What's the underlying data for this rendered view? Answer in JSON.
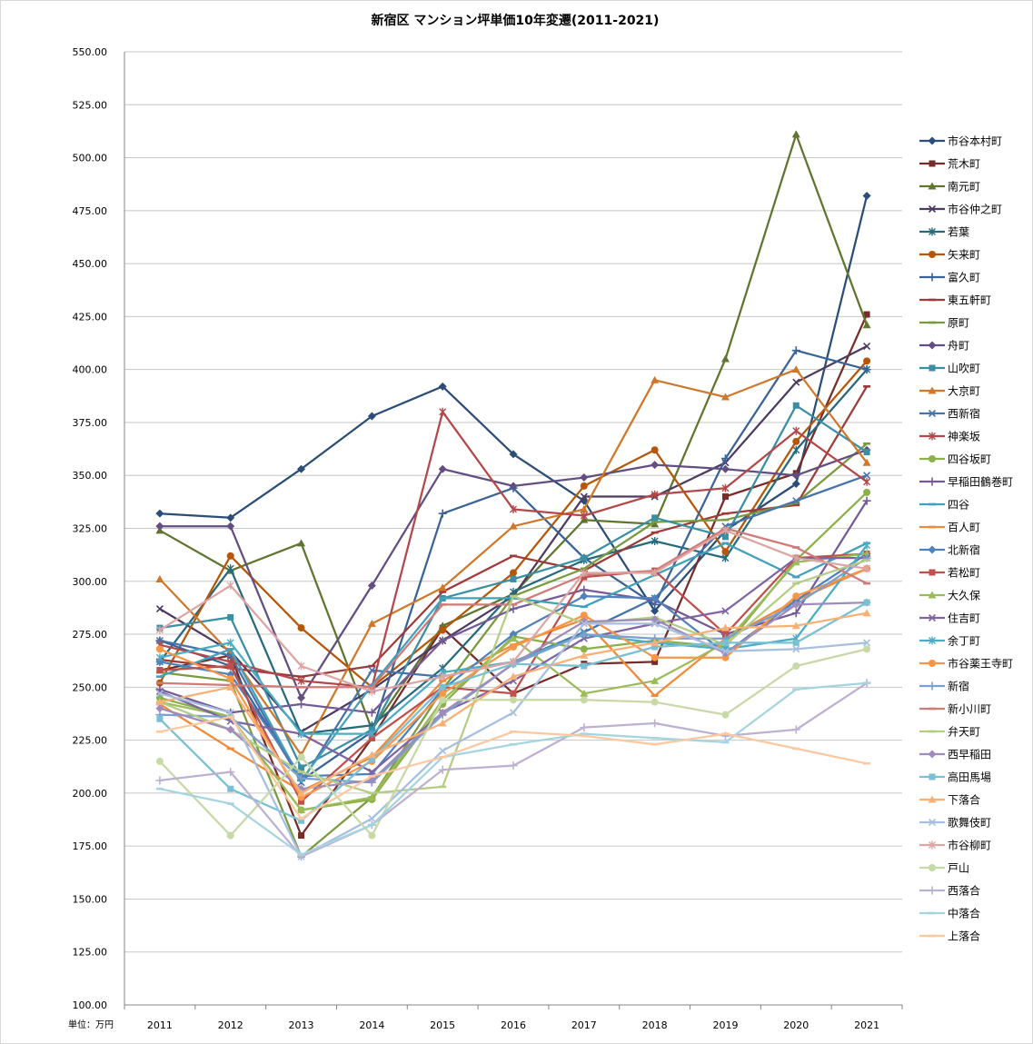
{
  "chart_data": {
    "type": "line",
    "title": "新宿区 マンション坪単価10年変遷(2011-2021)",
    "unit_label": "単位：万円",
    "xlabel": "",
    "ylabel": "",
    "ylim": [
      100,
      550
    ],
    "grid": true,
    "legend_position": "right",
    "y_ticks": [
      "100.00",
      "125.00",
      "150.00",
      "175.00",
      "200.00",
      "225.00",
      "250.00",
      "275.00",
      "300.00",
      "325.00",
      "350.00",
      "375.00",
      "400.00",
      "425.00",
      "450.00",
      "475.00",
      "500.00",
      "525.00",
      "550.00"
    ],
    "categories": [
      "2011",
      "2012",
      "2013",
      "2014",
      "2015",
      "2016",
      "2017",
      "2018",
      "2019",
      "2020",
      "2021"
    ],
    "series": [
      {
        "name": "市谷本村町",
        "color": "#2C4D75",
        "marker": "diamond",
        "values": [
          332,
          330,
          353,
          378,
          392,
          360,
          338,
          286,
          324,
          346,
          482
        ]
      },
      {
        "name": "荒木町",
        "color": "#772C2A",
        "marker": "square",
        "values": [
          258,
          265,
          180,
          226,
          278,
          247,
          261,
          262,
          340,
          351,
          426
        ]
      },
      {
        "name": "南元町",
        "color": "#5F7530",
        "marker": "triangle",
        "values": [
          324,
          305,
          318,
          230,
          279,
          294,
          329,
          327,
          405,
          511,
          421
        ]
      },
      {
        "name": "市谷仲之町",
        "color": "#4D3B62",
        "marker": "x",
        "values": [
          287,
          267,
          229,
          249,
          272,
          293,
          340,
          340,
          356,
          394,
          411
        ]
      },
      {
        "name": "若葉",
        "color": "#276A7C",
        "marker": "asterisk",
        "values": [
          262,
          306,
          228,
          232,
          259,
          295,
          310,
          319,
          311,
          362,
          400
        ]
      },
      {
        "name": "矢来町",
        "color": "#B65708",
        "marker": "circle",
        "values": [
          252,
          312,
          278,
          250,
          277,
          304,
          345,
          362,
          314,
          366,
          404
        ]
      },
      {
        "name": "富久町",
        "color": "#3A6396",
        "marker": "plus",
        "values": [
          272,
          260,
          206,
          229,
          332,
          344,
          311,
          289,
          358,
          409,
          400
        ]
      },
      {
        "name": "東五軒町",
        "color": "#9D3B39",
        "marker": "dash",
        "values": [
          263,
          259,
          255,
          260,
          295,
          312,
          305,
          323,
          332,
          336,
          392
        ]
      },
      {
        "name": "原町",
        "color": "#7A9A3F",
        "marker": "dash",
        "values": [
          257,
          253,
          170,
          198,
          249,
          293,
          306,
          328,
          329,
          337,
          365
        ]
      },
      {
        "name": "舟町",
        "color": "#634E82",
        "marker": "diamond",
        "values": [
          326,
          326,
          245,
          298,
          353,
          345,
          349,
          355,
          353,
          350,
          362
        ]
      },
      {
        "name": "山吹町",
        "color": "#3A8FA5",
        "marker": "square",
        "values": [
          278,
          283,
          212,
          230,
          292,
          301,
          311,
          330,
          321,
          383,
          361
        ]
      },
      {
        "name": "大京町",
        "color": "#D0782A",
        "marker": "triangle",
        "values": [
          301,
          266,
          218,
          280,
          297,
          326,
          334,
          395,
          387,
          400,
          356
        ]
      },
      {
        "name": "西新宿",
        "color": "#4674AA",
        "marker": "x",
        "values": [
          272,
          265,
          205,
          258,
          255,
          262,
          276,
          292,
          326,
          338,
          350
        ]
      },
      {
        "name": "神楽坂",
        "color": "#B4474A",
        "marker": "asterisk",
        "values": [
          270,
          262,
          253,
          250,
          380,
          334,
          331,
          341,
          344,
          371,
          347
        ]
      },
      {
        "name": "四谷坂町",
        "color": "#8CB04A",
        "marker": "circle",
        "values": [
          245,
          236,
          192,
          197,
          242,
          274,
          268,
          272,
          269,
          310,
          342
        ]
      },
      {
        "name": "早稲田鶴巻町",
        "color": "#745A97",
        "marker": "plus",
        "values": [
          249,
          238,
          242,
          238,
          272,
          287,
          296,
          291,
          275,
          285,
          338
        ]
      },
      {
        "name": "四谷",
        "color": "#43A0BA",
        "marker": "dash",
        "values": [
          255,
          268,
          206,
          251,
          292,
          292,
          288,
          303,
          318,
          302,
          318
        ]
      },
      {
        "name": "百人町",
        "color": "#EE8A3A",
        "marker": "dash",
        "values": [
          242,
          221,
          201,
          217,
          253,
          270,
          282,
          246,
          273,
          291,
          306
        ]
      },
      {
        "name": "北新宿",
        "color": "#4F81BD",
        "marker": "diamond",
        "values": [
          262,
          256,
          208,
          209,
          249,
          275,
          293,
          292,
          266,
          291,
          313
        ]
      },
      {
        "name": "若松町",
        "color": "#C0504D",
        "marker": "square",
        "values": [
          258,
          260,
          196,
          226,
          250,
          247,
          302,
          305,
          275,
          311,
          313
        ]
      },
      {
        "name": "大久保",
        "color": "#9BBB59",
        "marker": "triangle",
        "values": [
          243,
          236,
          192,
          198,
          244,
          273,
          247,
          253,
          271,
          309,
          313
        ]
      },
      {
        "name": "住吉町",
        "color": "#8064A2",
        "marker": "x",
        "values": [
          248,
          234,
          228,
          210,
          238,
          253,
          273,
          280,
          286,
          311,
          311
        ]
      },
      {
        "name": "余丁町",
        "color": "#4BACC6",
        "marker": "asterisk",
        "values": [
          264,
          271,
          228,
          228,
          257,
          262,
          275,
          271,
          268,
          273,
          317
        ]
      },
      {
        "name": "市谷薬王寺町",
        "color": "#F79646",
        "marker": "circle",
        "values": [
          268,
          254,
          198,
          215,
          247,
          269,
          284,
          264,
          264,
          293,
          306
        ]
      },
      {
        "name": "新宿",
        "color": "#7BA0CD",
        "marker": "plus",
        "values": [
          237,
          236,
          207,
          205,
          237,
          261,
          275,
          273,
          273,
          289,
          311
        ]
      },
      {
        "name": "新小川町",
        "color": "#CF7B79",
        "marker": "dash",
        "values": [
          252,
          251,
          250,
          250,
          289,
          289,
          303,
          305,
          325,
          316,
          299
        ]
      },
      {
        "name": "弁天町",
        "color": "#B4CC84",
        "marker": "dash",
        "values": [
          243,
          230,
          210,
          200,
          203,
          293,
          280,
          283,
          270,
          299,
          310
        ]
      },
      {
        "name": "西早稲田",
        "color": "#A08CBA",
        "marker": "diamond",
        "values": [
          240,
          230,
          202,
          206,
          238,
          261,
          281,
          282,
          266,
          289,
          290
        ]
      },
      {
        "name": "高田馬場",
        "color": "#79C0D4",
        "marker": "square",
        "values": [
          235,
          202,
          187,
          216,
          250,
          261,
          260,
          269,
          271,
          271,
          290
        ]
      },
      {
        "name": "下落合",
        "color": "#F9B075",
        "marker": "triangle",
        "values": [
          243,
          250,
          200,
          218,
          233,
          255,
          265,
          271,
          278,
          279,
          285
        ]
      },
      {
        "name": "歌舞伎町",
        "color": "#A7BFDE",
        "marker": "x",
        "values": [
          247,
          238,
          170,
          188,
          220,
          238,
          280,
          280,
          267,
          268,
          271
        ]
      },
      {
        "name": "市谷柳町",
        "color": "#DDA5A4",
        "marker": "asterisk",
        "values": [
          277,
          298,
          260,
          248,
          255,
          262,
          304,
          304,
          324,
          311,
          306
        ]
      },
      {
        "name": "戸山",
        "color": "#C6D9A6",
        "marker": "circle",
        "values": [
          215,
          180,
          217,
          180,
          244,
          244,
          244,
          243,
          237,
          260,
          268
        ]
      },
      {
        "name": "西落合",
        "color": "#BDB0D1",
        "marker": "plus",
        "values": [
          206,
          210,
          170,
          185,
          211,
          213,
          231,
          233,
          227,
          230,
          252
        ]
      },
      {
        "name": "中落合",
        "color": "#A5D4E1",
        "marker": "dash",
        "values": [
          202,
          195,
          171,
          185,
          217,
          223,
          228,
          226,
          224,
          249,
          252
        ]
      },
      {
        "name": "上落合",
        "color": "#FBC8A1",
        "marker": "dash",
        "values": [
          229,
          236,
          188,
          208,
          217,
          229,
          227,
          223,
          228,
          221,
          214
        ]
      }
    ]
  }
}
